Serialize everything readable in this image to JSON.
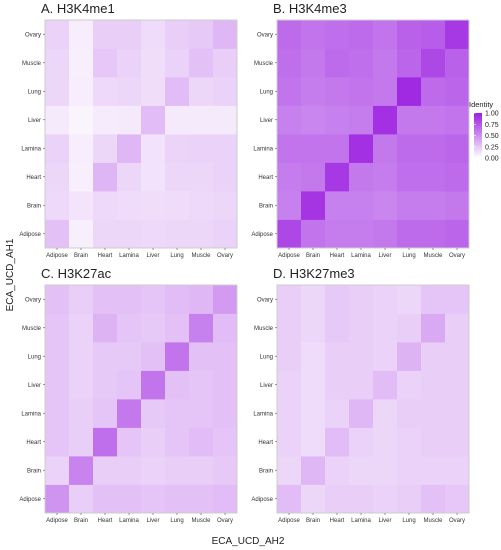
{
  "figure": {
    "ylabel": "ECA_UCD_AH1",
    "xlabel": "ECA_UCD_AH2"
  },
  "colors": {
    "low": "#ffffff",
    "high": "#9b1ee0",
    "panel_border": "#cccccc"
  },
  "legend": {
    "title": "Identity",
    "ticks": [
      "1.00",
      "0.75",
      "0.50",
      "0.25",
      "0.00"
    ]
  },
  "chart_data": [
    {
      "type": "heatmap",
      "title": "A. H3K4me1",
      "x_categories": [
        "Adipose",
        "Brain",
        "Heart",
        "Lamina",
        "Liver",
        "Lung",
        "Muscle",
        "Ovary"
      ],
      "y_categories": [
        "Adipose",
        "Brain",
        "Heart",
        "Lamina",
        "Liver",
        "Lung",
        "Muscle",
        "Ovary"
      ],
      "value_range": [
        0,
        1
      ],
      "values": [
        [
          0.28,
          0.07,
          0.18,
          0.18,
          0.17,
          0.18,
          0.18,
          0.2
        ],
        [
          0.17,
          0.12,
          0.17,
          0.16,
          0.15,
          0.16,
          0.17,
          0.18
        ],
        [
          0.18,
          0.07,
          0.33,
          0.18,
          0.13,
          0.18,
          0.18,
          0.2
        ],
        [
          0.2,
          0.08,
          0.18,
          0.32,
          0.13,
          0.19,
          0.2,
          0.2
        ],
        [
          0.1,
          0.05,
          0.09,
          0.1,
          0.3,
          0.1,
          0.1,
          0.1
        ],
        [
          0.18,
          0.08,
          0.17,
          0.18,
          0.15,
          0.3,
          0.18,
          0.2
        ],
        [
          0.18,
          0.07,
          0.25,
          0.2,
          0.15,
          0.2,
          0.28,
          0.22
        ],
        [
          0.2,
          0.08,
          0.22,
          0.22,
          0.16,
          0.22,
          0.24,
          0.32
        ]
      ]
    },
    {
      "type": "heatmap",
      "title": "B. H3K4me3",
      "x_categories": [
        "Adipose",
        "Brain",
        "Heart",
        "Lamina",
        "Liver",
        "Lung",
        "Muscle",
        "Ovary"
      ],
      "y_categories": [
        "Adipose",
        "Brain",
        "Heart",
        "Lamina",
        "Liver",
        "Lung",
        "Muscle",
        "Ovary"
      ],
      "value_range": [
        0,
        1
      ],
      "values": [
        [
          0.82,
          0.62,
          0.58,
          0.58,
          0.6,
          0.66,
          0.66,
          0.68
        ],
        [
          0.56,
          0.9,
          0.56,
          0.56,
          0.54,
          0.58,
          0.58,
          0.6
        ],
        [
          0.58,
          0.6,
          0.88,
          0.6,
          0.58,
          0.64,
          0.64,
          0.66
        ],
        [
          0.62,
          0.62,
          0.62,
          0.92,
          0.6,
          0.66,
          0.66,
          0.68
        ],
        [
          0.56,
          0.54,
          0.56,
          0.58,
          0.92,
          0.6,
          0.6,
          0.62
        ],
        [
          0.62,
          0.58,
          0.6,
          0.62,
          0.6,
          0.95,
          0.66,
          0.68
        ],
        [
          0.64,
          0.6,
          0.66,
          0.64,
          0.6,
          0.68,
          0.82,
          0.7
        ],
        [
          0.66,
          0.62,
          0.64,
          0.66,
          0.62,
          0.7,
          0.72,
          0.88
        ]
      ]
    },
    {
      "type": "heatmap",
      "title": "C. H3K27ac",
      "x_categories": [
        "Adipose",
        "Brain",
        "Heart",
        "Lamina",
        "Liver",
        "Lung",
        "Muscle",
        "Ovary"
      ],
      "y_categories": [
        "Adipose",
        "Brain",
        "Heart",
        "Lamina",
        "Liver",
        "Lung",
        "Muscle",
        "Ovary"
      ],
      "value_range": [
        0,
        1
      ],
      "values": [
        [
          0.48,
          0.22,
          0.28,
          0.28,
          0.26,
          0.28,
          0.28,
          0.3
        ],
        [
          0.2,
          0.55,
          0.22,
          0.22,
          0.2,
          0.22,
          0.22,
          0.24
        ],
        [
          0.26,
          0.22,
          0.64,
          0.26,
          0.22,
          0.26,
          0.3,
          0.26
        ],
        [
          0.26,
          0.22,
          0.26,
          0.6,
          0.24,
          0.26,
          0.26,
          0.28
        ],
        [
          0.26,
          0.2,
          0.24,
          0.26,
          0.62,
          0.28,
          0.26,
          0.28
        ],
        [
          0.26,
          0.2,
          0.24,
          0.24,
          0.28,
          0.62,
          0.28,
          0.28
        ],
        [
          0.26,
          0.2,
          0.34,
          0.26,
          0.24,
          0.28,
          0.56,
          0.3
        ],
        [
          0.28,
          0.22,
          0.28,
          0.28,
          0.26,
          0.3,
          0.32,
          0.45
        ]
      ]
    },
    {
      "type": "heatmap",
      "title": "D. H3K27me3",
      "x_categories": [
        "Adipose",
        "Brain",
        "Heart",
        "Lamina",
        "Liver",
        "Lung",
        "Muscle",
        "Ovary"
      ],
      "y_categories": [
        "Adipose",
        "Brain",
        "Heart",
        "Lamina",
        "Liver",
        "Lung",
        "Muscle",
        "Ovary"
      ],
      "value_range": [
        0,
        1
      ],
      "values": [
        [
          0.3,
          0.18,
          0.22,
          0.22,
          0.2,
          0.22,
          0.28,
          0.25
        ],
        [
          0.18,
          0.32,
          0.2,
          0.18,
          0.18,
          0.2,
          0.2,
          0.2
        ],
        [
          0.2,
          0.16,
          0.3,
          0.2,
          0.18,
          0.2,
          0.22,
          0.22
        ],
        [
          0.2,
          0.16,
          0.2,
          0.32,
          0.18,
          0.22,
          0.22,
          0.22
        ],
        [
          0.2,
          0.16,
          0.22,
          0.22,
          0.3,
          0.2,
          0.22,
          0.22
        ],
        [
          0.22,
          0.16,
          0.22,
          0.22,
          0.2,
          0.34,
          0.22,
          0.22
        ],
        [
          0.22,
          0.18,
          0.24,
          0.22,
          0.2,
          0.22,
          0.38,
          0.22
        ],
        [
          0.22,
          0.18,
          0.24,
          0.22,
          0.2,
          0.18,
          0.26,
          0.26
        ]
      ]
    }
  ]
}
